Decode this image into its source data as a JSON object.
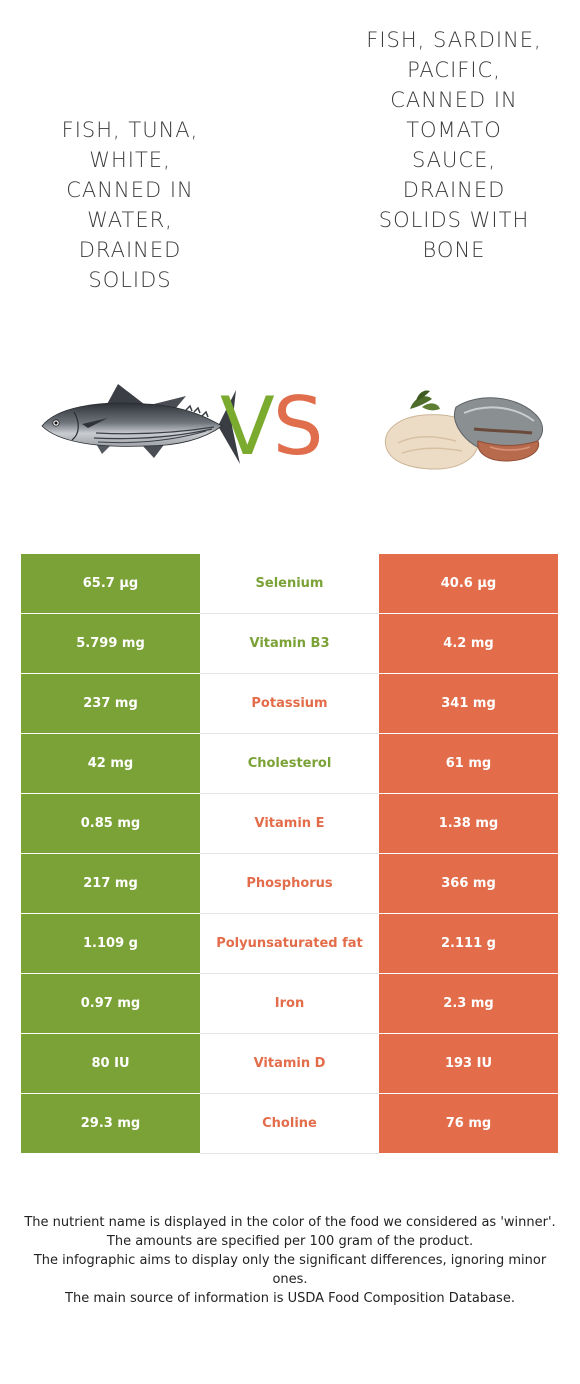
{
  "left_food": {
    "title": "FISH, TUNA, WHITE, CANNED IN WATER, DRAINED SOLIDS",
    "color": "#7ba237"
  },
  "right_food": {
    "title": "FISH, SARDINE, PACIFIC, CANNED IN TOMATO SAUCE, DRAINED SOLIDS WITH BONE",
    "color": "#e36d4b"
  },
  "vs": {
    "v": "V",
    "s": "S"
  },
  "nutrients": [
    {
      "name": "Selenium",
      "left": "65.7 µg",
      "right": "40.6 µg",
      "winner": "left"
    },
    {
      "name": "Vitamin B3",
      "left": "5.799 mg",
      "right": "4.2 mg",
      "winner": "left"
    },
    {
      "name": "Potassium",
      "left": "237 mg",
      "right": "341 mg",
      "winner": "right"
    },
    {
      "name": "Cholesterol",
      "left": "42 mg",
      "right": "61 mg",
      "winner": "left"
    },
    {
      "name": "Vitamin E",
      "left": "0.85 mg",
      "right": "1.38 mg",
      "winner": "right"
    },
    {
      "name": "Phosphorus",
      "left": "217 mg",
      "right": "366 mg",
      "winner": "right"
    },
    {
      "name": "Polyunsaturated fat",
      "left": "1.109 g",
      "right": "2.111 g",
      "winner": "right"
    },
    {
      "name": "Iron",
      "left": "0.97 mg",
      "right": "2.3 mg",
      "winner": "right"
    },
    {
      "name": "Vitamin D",
      "left": "80 IU",
      "right": "193 IU",
      "winner": "right"
    },
    {
      "name": "Choline",
      "left": "29.3 mg",
      "right": "76 mg",
      "winner": "right"
    }
  ],
  "footer": {
    "line1": "The nutrient name is displayed in the color of the food we considered as 'winner'.",
    "line2": "The amounts are specified per 100 gram of the product.",
    "line3": "The infographic aims to display only the significant differences, ignoring minor ones.",
    "line4": "The main source of information is USDA Food Composition Database."
  }
}
